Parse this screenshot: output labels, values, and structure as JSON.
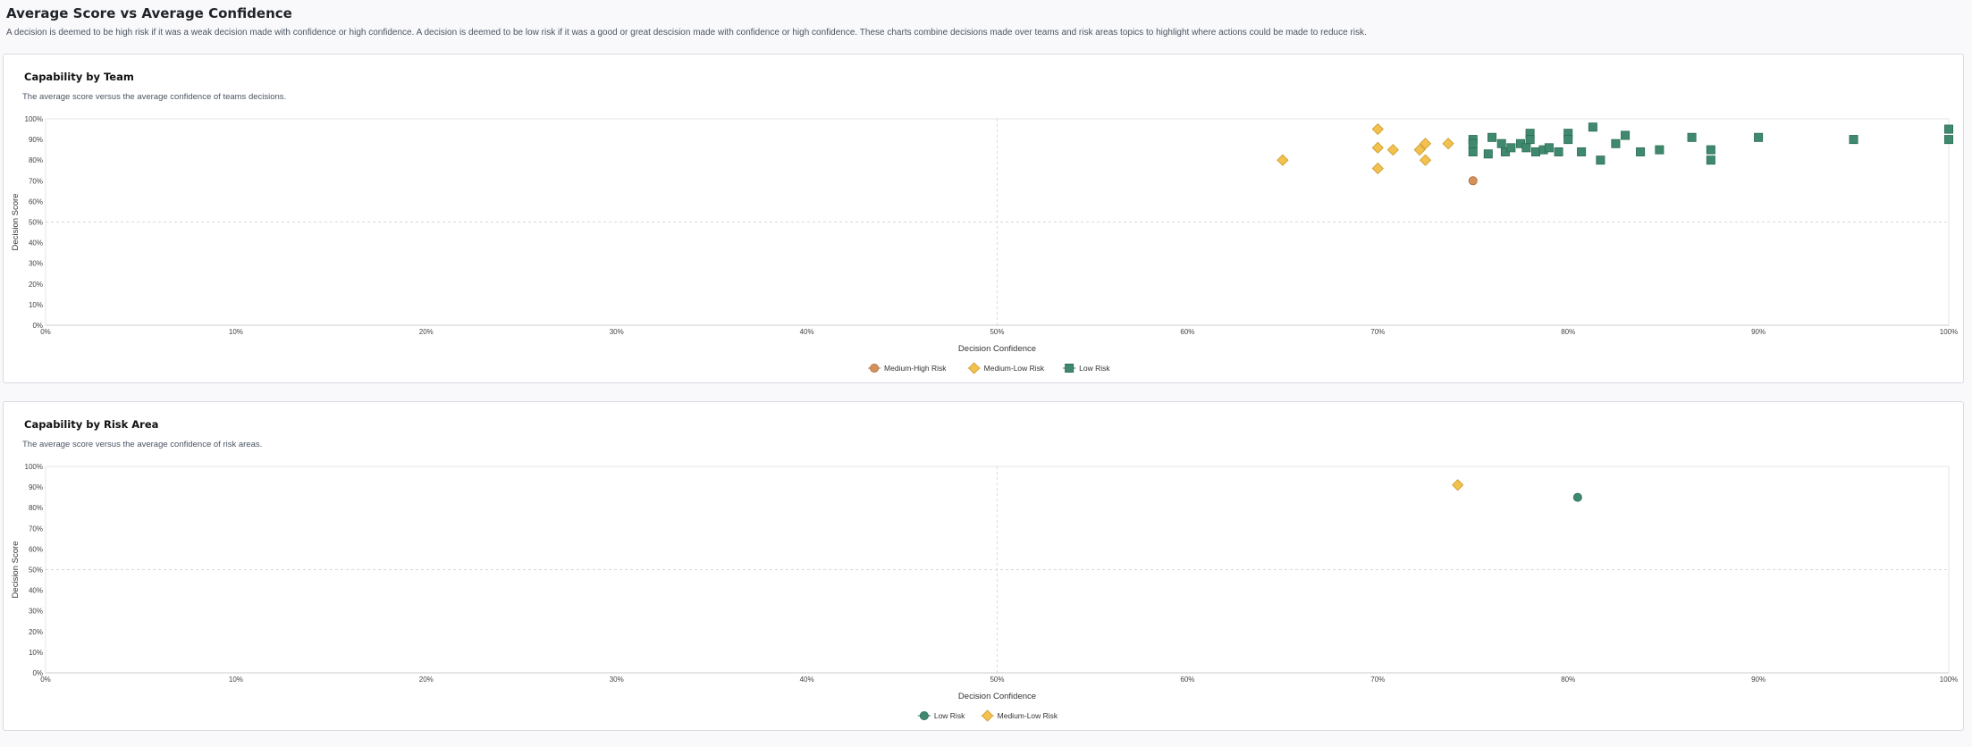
{
  "page": {
    "title": "Average Score vs Average Confidence",
    "description": "A decision is deemed to be high risk if it was a weak decision made with confidence or high confidence. A decision is deemed to be low risk if it was a good or great descision made with confidence or high confidence. These charts combine decisions made over teams and risk areas topics to highlight where actions could be made to reduce risk."
  },
  "colors": {
    "medium_high": "#d4925a",
    "medium_low": "#f2c14e",
    "low": "#3f8a6e",
    "medium_high_stroke": "#a86a3a",
    "medium_low_stroke": "#c9992a",
    "low_stroke": "#2c6b53"
  },
  "chart_data": [
    {
      "type": "scatter",
      "title": "Capability by Team",
      "subtitle": "The average score versus the average confidence of teams decisions.",
      "xlabel": "Decision Confidence",
      "ylabel": "Decision Score",
      "xlim": [
        0,
        100
      ],
      "ylim": [
        0,
        100
      ],
      "x_ticks": [
        "0%",
        "10%",
        "20%",
        "30%",
        "40%",
        "50%",
        "60%",
        "70%",
        "80%",
        "90%",
        "100%"
      ],
      "y_ticks": [
        "0%",
        "10%",
        "20%",
        "30%",
        "40%",
        "50%",
        "60%",
        "70%",
        "80%",
        "90%",
        "100%"
      ],
      "legend_position": "bottom-center",
      "series": [
        {
          "name": "Medium-High Risk",
          "marker": "circle",
          "color_key": "medium_high",
          "points": [
            [
              75,
              70
            ]
          ]
        },
        {
          "name": "Medium-Low Risk",
          "marker": "diamond",
          "color_key": "medium_low",
          "points": [
            [
              65,
              80
            ],
            [
              70,
              95
            ],
            [
              70,
              86
            ],
            [
              70,
              76
            ],
            [
              70.8,
              85
            ],
            [
              72.2,
              85
            ],
            [
              72.5,
              88
            ],
            [
              72.5,
              80
            ],
            [
              73.7,
              88
            ]
          ]
        },
        {
          "name": "Low Risk",
          "marker": "square",
          "color_key": "low",
          "points": [
            [
              75,
              90
            ],
            [
              75,
              88
            ],
            [
              75,
              84
            ],
            [
              75.8,
              83
            ],
            [
              76,
              91
            ],
            [
              76.5,
              88
            ],
            [
              76.7,
              84
            ],
            [
              77,
              86
            ],
            [
              77.5,
              88
            ],
            [
              77.8,
              86
            ],
            [
              78,
              93
            ],
            [
              78,
              90
            ],
            [
              78.3,
              84
            ],
            [
              78.7,
              85
            ],
            [
              79,
              86
            ],
            [
              79.5,
              84
            ],
            [
              80,
              93
            ],
            [
              80,
              90
            ],
            [
              80.7,
              84
            ],
            [
              81.3,
              96
            ],
            [
              81.7,
              80
            ],
            [
              82.5,
              88
            ],
            [
              83,
              92
            ],
            [
              83.8,
              84
            ],
            [
              84.8,
              85
            ],
            [
              86.5,
              91
            ],
            [
              87.5,
              85
            ],
            [
              87.5,
              80
            ],
            [
              90,
              91
            ],
            [
              95,
              90
            ],
            [
              100,
              95
            ],
            [
              100,
              90
            ]
          ]
        }
      ]
    },
    {
      "type": "scatter",
      "title": "Capability by Risk Area",
      "subtitle": "The average score versus the average confidence of risk areas.",
      "xlabel": "Decision Confidence",
      "ylabel": "Decision Score",
      "xlim": [
        0,
        100
      ],
      "ylim": [
        0,
        100
      ],
      "x_ticks": [
        "0%",
        "10%",
        "20%",
        "30%",
        "40%",
        "50%",
        "60%",
        "70%",
        "80%",
        "90%",
        "100%"
      ],
      "y_ticks": [
        "0%",
        "10%",
        "20%",
        "30%",
        "40%",
        "50%",
        "60%",
        "70%",
        "80%",
        "90%",
        "100%"
      ],
      "legend_position": "bottom-center",
      "series": [
        {
          "name": "Low Risk",
          "marker": "circle",
          "color_key": "low",
          "points": [
            [
              80.5,
              85
            ]
          ]
        },
        {
          "name": "Medium-Low Risk",
          "marker": "diamond",
          "color_key": "medium_low",
          "points": [
            [
              74.2,
              91
            ]
          ]
        }
      ]
    }
  ]
}
